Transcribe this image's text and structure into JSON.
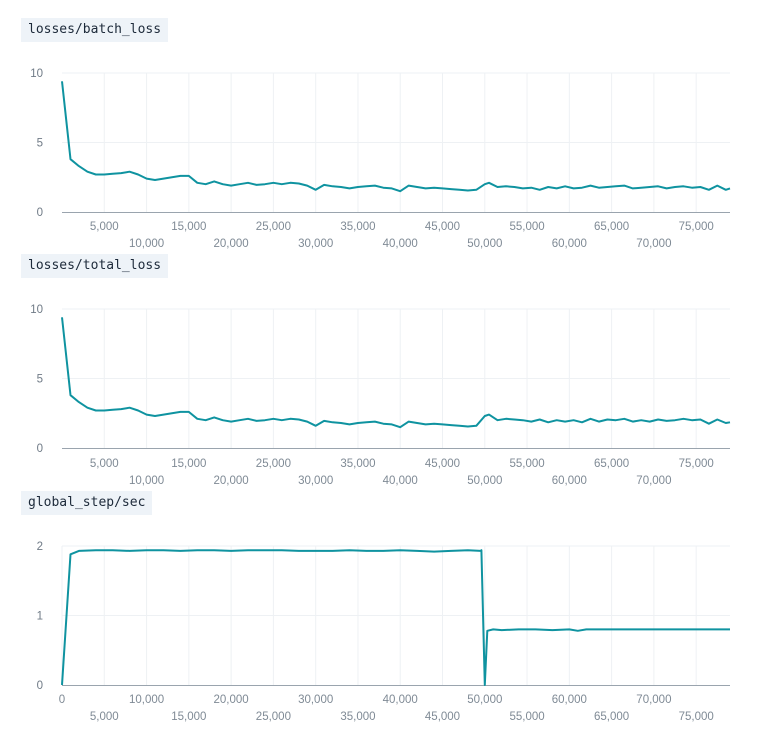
{
  "colors": {
    "line": "#0f93a0"
  },
  "chart_data": [
    {
      "type": "line",
      "title": "losses/batch_loss",
      "xlim": [
        0,
        79000
      ],
      "ylim": [
        0,
        10
      ],
      "yticks": [
        0,
        5,
        10
      ],
      "xticks_top": [
        5000,
        15000,
        25000,
        35000,
        45000,
        55000,
        65000,
        75000
      ],
      "xticks_bottom": [
        10000,
        20000,
        30000,
        40000,
        50000,
        60000,
        70000
      ],
      "series": [
        {
          "x": [
            0,
            1000,
            2000,
            3000,
            4000,
            5000,
            6000,
            7000,
            8000,
            9000,
            10000,
            11000,
            12000,
            13000,
            14000,
            15000,
            16000,
            17000,
            18000,
            19000,
            20000,
            21000,
            22000,
            23000,
            24000,
            25000,
            26000,
            27000,
            28000,
            29000,
            30000,
            31000,
            32000,
            33000,
            34000,
            35000,
            36000,
            37000,
            38000,
            39000,
            40000,
            41000,
            42000,
            43000,
            44000,
            45000,
            46000,
            47000,
            48000,
            49000,
            50000,
            50500,
            51500,
            52500,
            53500,
            54500,
            55500,
            56500,
            57500,
            58500,
            59500,
            60500,
            61500,
            62500,
            63500,
            64500,
            65500,
            66500,
            67500,
            68500,
            69500,
            70500,
            71500,
            72500,
            73500,
            74500,
            75500,
            76500,
            77500,
            78500,
            79000
          ],
          "y": [
            9.4,
            3.8,
            3.3,
            2.9,
            2.7,
            2.7,
            2.75,
            2.8,
            2.9,
            2.7,
            2.4,
            2.3,
            2.4,
            2.5,
            2.6,
            2.6,
            2.1,
            2.0,
            2.2,
            2.0,
            1.9,
            2.0,
            2.1,
            1.95,
            2.0,
            2.1,
            2.0,
            2.1,
            2.05,
            1.9,
            1.6,
            1.95,
            1.85,
            1.8,
            1.7,
            1.8,
            1.85,
            1.9,
            1.75,
            1.7,
            1.5,
            1.9,
            1.8,
            1.7,
            1.75,
            1.7,
            1.65,
            1.6,
            1.55,
            1.6,
            2.0,
            2.1,
            1.8,
            1.85,
            1.8,
            1.7,
            1.75,
            1.6,
            1.8,
            1.7,
            1.85,
            1.7,
            1.75,
            1.9,
            1.75,
            1.8,
            1.85,
            1.9,
            1.7,
            1.75,
            1.8,
            1.85,
            1.7,
            1.8,
            1.85,
            1.75,
            1.8,
            1.6,
            1.9,
            1.6,
            1.7
          ]
        }
      ]
    },
    {
      "type": "line",
      "title": "losses/total_loss",
      "xlim": [
        0,
        79000
      ],
      "ylim": [
        0,
        10
      ],
      "yticks": [
        0,
        5,
        10
      ],
      "xticks_top": [
        5000,
        15000,
        25000,
        35000,
        45000,
        55000,
        65000,
        75000
      ],
      "xticks_bottom": [
        10000,
        20000,
        30000,
        40000,
        50000,
        60000,
        70000
      ],
      "series": [
        {
          "x": [
            0,
            1000,
            2000,
            3000,
            4000,
            5000,
            6000,
            7000,
            8000,
            9000,
            10000,
            11000,
            12000,
            13000,
            14000,
            15000,
            16000,
            17000,
            18000,
            19000,
            20000,
            21000,
            22000,
            23000,
            24000,
            25000,
            26000,
            27000,
            28000,
            29000,
            30000,
            31000,
            32000,
            33000,
            34000,
            35000,
            36000,
            37000,
            38000,
            39000,
            40000,
            41000,
            42000,
            43000,
            44000,
            45000,
            46000,
            47000,
            48000,
            49000,
            50000,
            50500,
            51500,
            52500,
            53500,
            54500,
            55500,
            56500,
            57500,
            58500,
            59500,
            60500,
            61500,
            62500,
            63500,
            64500,
            65500,
            66500,
            67500,
            68500,
            69500,
            70500,
            71500,
            72500,
            73500,
            74500,
            75500,
            76500,
            77500,
            78500,
            79000
          ],
          "y": [
            9.4,
            3.8,
            3.3,
            2.9,
            2.7,
            2.7,
            2.75,
            2.8,
            2.9,
            2.7,
            2.4,
            2.3,
            2.4,
            2.5,
            2.6,
            2.6,
            2.1,
            2.0,
            2.2,
            2.0,
            1.9,
            2.0,
            2.1,
            1.95,
            2.0,
            2.1,
            2.0,
            2.1,
            2.05,
            1.9,
            1.6,
            1.95,
            1.85,
            1.8,
            1.7,
            1.8,
            1.85,
            1.9,
            1.75,
            1.7,
            1.5,
            1.9,
            1.8,
            1.7,
            1.75,
            1.7,
            1.65,
            1.6,
            1.55,
            1.6,
            2.3,
            2.4,
            2.0,
            2.1,
            2.05,
            2.0,
            1.9,
            2.05,
            1.85,
            2.0,
            1.9,
            2.0,
            1.85,
            2.1,
            1.9,
            2.05,
            2.0,
            2.1,
            1.9,
            2.0,
            1.9,
            2.05,
            1.95,
            2.0,
            2.1,
            2.0,
            2.05,
            1.75,
            2.05,
            1.8,
            1.85
          ]
        }
      ]
    },
    {
      "type": "line",
      "title": "global_step/sec",
      "xlim": [
        0,
        79000
      ],
      "ylim": [
        0,
        2
      ],
      "yticks": [
        0,
        1,
        2
      ],
      "xticks_top": [
        0,
        10000,
        20000,
        30000,
        40000,
        50000,
        60000,
        70000
      ],
      "xticks_bottom": [
        5000,
        15000,
        25000,
        35000,
        45000,
        55000,
        65000,
        75000
      ],
      "series": [
        {
          "x": [
            0,
            1000,
            2000,
            4000,
            6000,
            8000,
            10000,
            12000,
            14000,
            16000,
            18000,
            20000,
            22000,
            24000,
            26000,
            28000,
            30000,
            32000,
            34000,
            36000,
            38000,
            40000,
            42000,
            44000,
            46000,
            48000,
            49500,
            49600,
            50000,
            50300,
            51000,
            52000,
            54000,
            56000,
            58000,
            60000,
            61000,
            62000,
            64000,
            66000,
            68000,
            70000,
            72000,
            74000,
            76000,
            78000,
            79000
          ],
          "y": [
            0.0,
            1.88,
            1.93,
            1.94,
            1.94,
            1.93,
            1.94,
            1.94,
            1.93,
            1.94,
            1.94,
            1.93,
            1.94,
            1.94,
            1.94,
            1.93,
            1.93,
            1.93,
            1.94,
            1.93,
            1.93,
            1.94,
            1.93,
            1.92,
            1.93,
            1.94,
            1.93,
            1.94,
            0.0,
            0.78,
            0.8,
            0.79,
            0.8,
            0.8,
            0.79,
            0.8,
            0.78,
            0.8,
            0.8,
            0.8,
            0.8,
            0.8,
            0.8,
            0.8,
            0.8,
            0.8,
            0.8
          ]
        }
      ]
    }
  ]
}
